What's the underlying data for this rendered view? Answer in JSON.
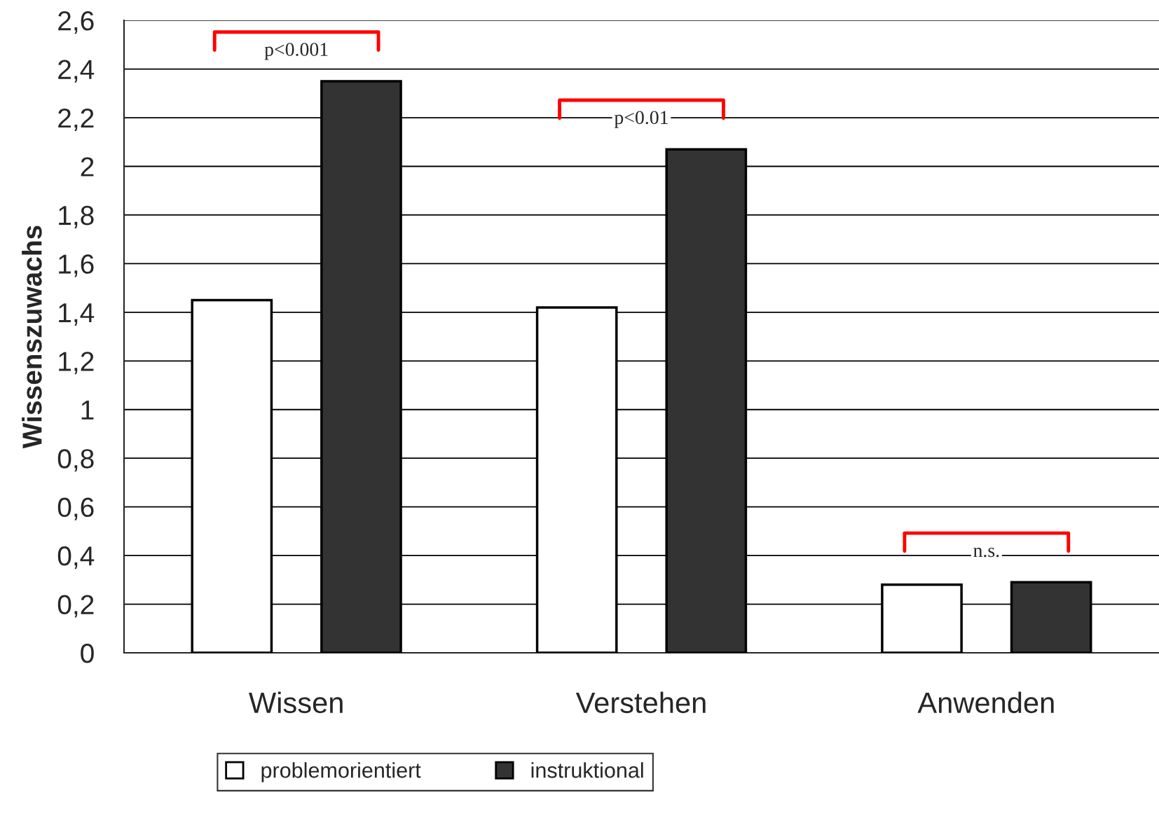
{
  "chart_data": {
    "type": "bar",
    "ylabel": "Wissenszuwachs",
    "categories": [
      "Wissen",
      "Verstehen",
      "Anwenden"
    ],
    "series": [
      {
        "name": "problemorientiert",
        "color": "#ffffff",
        "values": [
          1.45,
          1.42,
          0.28
        ]
      },
      {
        "name": "instruktional",
        "color": "#333333",
        "values": [
          2.35,
          2.07,
          0.29
        ]
      }
    ],
    "ylim": [
      0,
      2.6
    ],
    "yticks": [
      0,
      {
        "value": 0.2,
        "label": "0,2"
      },
      {
        "value": 0.4,
        "label": "0,4"
      },
      {
        "value": 0.6,
        "label": "0,6"
      },
      {
        "value": 0.8,
        "label": "0,8"
      },
      1,
      {
        "value": 1.2,
        "label": "1,2"
      },
      {
        "value": 1.4,
        "label": "1,4"
      },
      {
        "value": 1.6,
        "label": "1,6"
      },
      {
        "value": 1.8,
        "label": "1,8"
      },
      2,
      {
        "value": 2.2,
        "label": "2,2"
      },
      {
        "value": 2.4,
        "label": "2,4"
      },
      {
        "value": 2.6,
        "label": "2,6"
      }
    ],
    "annotations": [
      "p<0.001",
      "p<0.01",
      "n.s."
    ],
    "grid": "y",
    "legend": "bottom"
  }
}
